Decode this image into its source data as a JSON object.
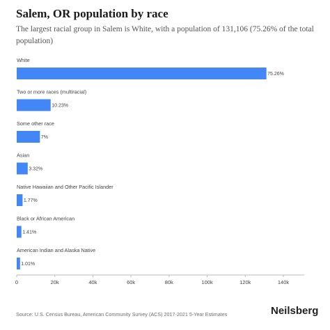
{
  "title": "Salem, OR population by race",
  "subtitle": "The largest racial group in Salem is White, with a population of 131,106 (75.26% of the total population)",
  "source": "Source: U.S. Census Bureau, American Community Survey (ACS) 2017-2021 5-Year Estimates",
  "brand": "Neilsberg",
  "colors": {
    "bar": "#4287f5",
    "axis": "#bbbbbb",
    "text": "#444444"
  },
  "chart_data": {
    "type": "bar",
    "orientation": "horizontal",
    "categories": [
      "White",
      "Two or more races (multiracial)",
      "Some other race",
      "Asian",
      "Native Hawaiian and Other Pacific Islander",
      "Black or African American",
      "American Indian and Alaska Native"
    ],
    "values": [
      131106,
      17820,
      12194,
      5783,
      3083,
      2456,
      1759
    ],
    "data_labels": [
      "75.26%",
      "10.23%",
      "7%",
      "3.32%",
      "1.77%",
      "1.41%",
      "1.01%"
    ],
    "xlim": [
      0,
      140000
    ],
    "xticks": [
      0,
      20000,
      40000,
      60000,
      80000,
      100000,
      120000,
      140000
    ],
    "xtick_labels": [
      "0",
      "20k",
      "40k",
      "60k",
      "80k",
      "100k",
      "120k",
      "140k"
    ],
    "grid": false
  }
}
